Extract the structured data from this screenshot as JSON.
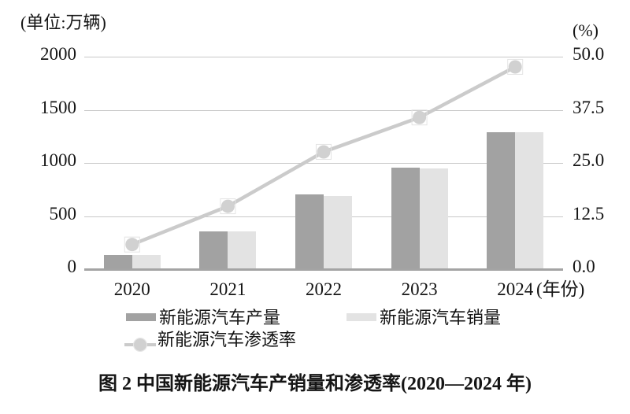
{
  "caption": "图 2  中国新能源汽车产销量和渗透率(2020—2024 年)",
  "colors": {
    "production_bar": "#a2a2a2",
    "sales_bar": "#e3e3e3",
    "penetration_line": "#cbcbcb",
    "penetration_dot": "#d1d1d1",
    "dot_halo": "#e4e4e4",
    "gridline": "#c8c8c8",
    "axis_line": "#a4a4a4",
    "text": "#151515"
  },
  "chart_data": {
    "type": "bar+line",
    "title": "图 2  中国新能源汽车产销量和渗透率(2020—2024 年)",
    "categories": [
      "2020",
      "2021",
      "2022",
      "2023",
      "2024"
    ],
    "series": [
      {
        "name": "新能源汽车产量",
        "kind": "bar",
        "axis": "left",
        "values": [
          136.6,
          354.5,
          705.8,
          958.7,
          1288.8
        ]
      },
      {
        "name": "新能源汽车销量",
        "kind": "bar",
        "axis": "left",
        "values": [
          136.7,
          352.1,
          688.7,
          949.5,
          1286.6
        ]
      },
      {
        "name": "新能源汽车渗透率",
        "kind": "line",
        "axis": "right",
        "values": [
          5.8,
          14.8,
          27.6,
          35.7,
          47.6
        ]
      }
    ],
    "left_axis": {
      "label": "(单位:万辆)",
      "min": 0,
      "max": 2000,
      "tick_labels_top_to_bottom": [
        "2000",
        "1500",
        "1000",
        "500",
        "0"
      ]
    },
    "right_axis": {
      "label": "(%)",
      "min": 0,
      "max": 50,
      "tick_labels_top_to_bottom": [
        "50.0",
        "37.5",
        "25.0",
        "12.5",
        "0.0"
      ]
    },
    "x_label_suffix": "(年份)",
    "legend_position": "bottom",
    "grid": "horizontal-only",
    "ylim_left": [
      0,
      2000
    ],
    "ylim_right": [
      0,
      50
    ]
  }
}
